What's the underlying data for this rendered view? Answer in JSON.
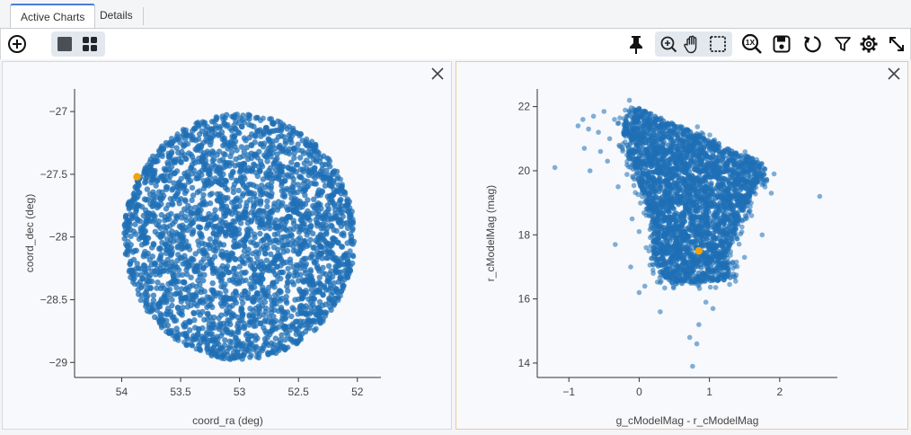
{
  "tabs": [
    {
      "label": "Active Charts"
    },
    {
      "label": "Details"
    }
  ],
  "colors": {
    "points": "#1f6fb5",
    "highlight": "#f5a20a",
    "active_tab_accent": "#4a7dd9",
    "selected_panel_border": "#f2c994"
  },
  "toolbar": {
    "left_icons": [
      "add-circle-icon",
      "single-view-icon",
      "grid-view-icon"
    ],
    "right_icons": [
      "pin-icon",
      "zoom-in-icon",
      "pan-hand-icon",
      "select-box-icon",
      "zoom-reset-1x-icon",
      "save-icon",
      "restore-icon",
      "filter-icon",
      "settings-gear-icon",
      "expand-icon"
    ],
    "zoom_reset_text": "1X"
  },
  "chart_data": [
    {
      "type": "scatter",
      "title": "",
      "xlabel": "coord_ra (deg)",
      "ylabel": "coord_dec (deg)",
      "xlim": [
        54.4,
        51.8
      ],
      "ylim": [
        -29.12,
        -26.82
      ],
      "x_ticks": [
        54,
        53.5,
        53,
        52.5,
        52
      ],
      "x_tick_labels": [
        "54",
        "53.5",
        "53",
        "52.5",
        "52"
      ],
      "y_ticks": [
        -27,
        -27.5,
        -28,
        -28.5,
        -29
      ],
      "y_tick_labels": [
        "−27",
        "−27.5",
        "−28",
        "−28.5",
        "−29"
      ],
      "grid": false,
      "distribution": {
        "shape": "disk",
        "center": [
          53.0,
          -28.0
        ],
        "radius_deg": 0.98
      },
      "highlight": {
        "x": 53.87,
        "y": -27.52
      }
    },
    {
      "type": "scatter",
      "title": "",
      "xlabel": "g_cModelMag - r_cModelMag",
      "ylabel": "r_cModelMag (mag)",
      "xlim": [
        -1.45,
        2.82
      ],
      "ylim": [
        13.55,
        22.55
      ],
      "x_ticks": [
        -1,
        0,
        1,
        2
      ],
      "x_tick_labels": [
        "−1",
        "0",
        "1",
        "2"
      ],
      "y_ticks": [
        14,
        16,
        18,
        20,
        22
      ],
      "y_tick_labels": [
        "14",
        "16",
        "18",
        "20",
        "22"
      ],
      "grid": false,
      "distribution": {
        "shape": "color-magnitude wedge"
      },
      "sparse_points": [
        [
          -1.2,
          20.1
        ],
        [
          -0.87,
          21.4
        ],
        [
          -0.8,
          21.6
        ],
        [
          -0.72,
          21.3
        ],
        [
          -0.65,
          21.7
        ],
        [
          -0.58,
          21.2
        ],
        [
          -0.5,
          21.85
        ],
        [
          -0.42,
          21.0
        ],
        [
          -0.35,
          21.6
        ],
        [
          -0.78,
          20.7
        ],
        [
          -0.55,
          20.6
        ],
        [
          -0.45,
          20.3
        ],
        [
          -0.2,
          20.9
        ],
        [
          -0.1,
          20.2
        ],
        [
          -0.7,
          20.0
        ],
        [
          2.57,
          19.2
        ],
        [
          1.92,
          19.9
        ],
        [
          1.88,
          19.3
        ],
        [
          1.75,
          18.0
        ],
        [
          -0.3,
          19.5
        ],
        [
          -0.34,
          17.7
        ],
        [
          -0.1,
          18.5
        ],
        [
          0.0,
          18.1
        ],
        [
          0.1,
          17.6
        ],
        [
          -0.12,
          17.0
        ],
        [
          0.0,
          16.2
        ],
        [
          0.08,
          16.4
        ],
        [
          0.3,
          15.6
        ],
        [
          0.2,
          16.8
        ],
        [
          1.05,
          15.7
        ],
        [
          0.85,
          15.2
        ],
        [
          0.72,
          14.8
        ],
        [
          0.82,
          14.6
        ],
        [
          0.76,
          13.9
        ],
        [
          0.95,
          15.9
        ],
        [
          1.2,
          16.6
        ],
        [
          1.5,
          17.3
        ],
        [
          1.6,
          18.6
        ]
      ],
      "highlight": {
        "x": 0.85,
        "y": 17.5
      }
    }
  ]
}
